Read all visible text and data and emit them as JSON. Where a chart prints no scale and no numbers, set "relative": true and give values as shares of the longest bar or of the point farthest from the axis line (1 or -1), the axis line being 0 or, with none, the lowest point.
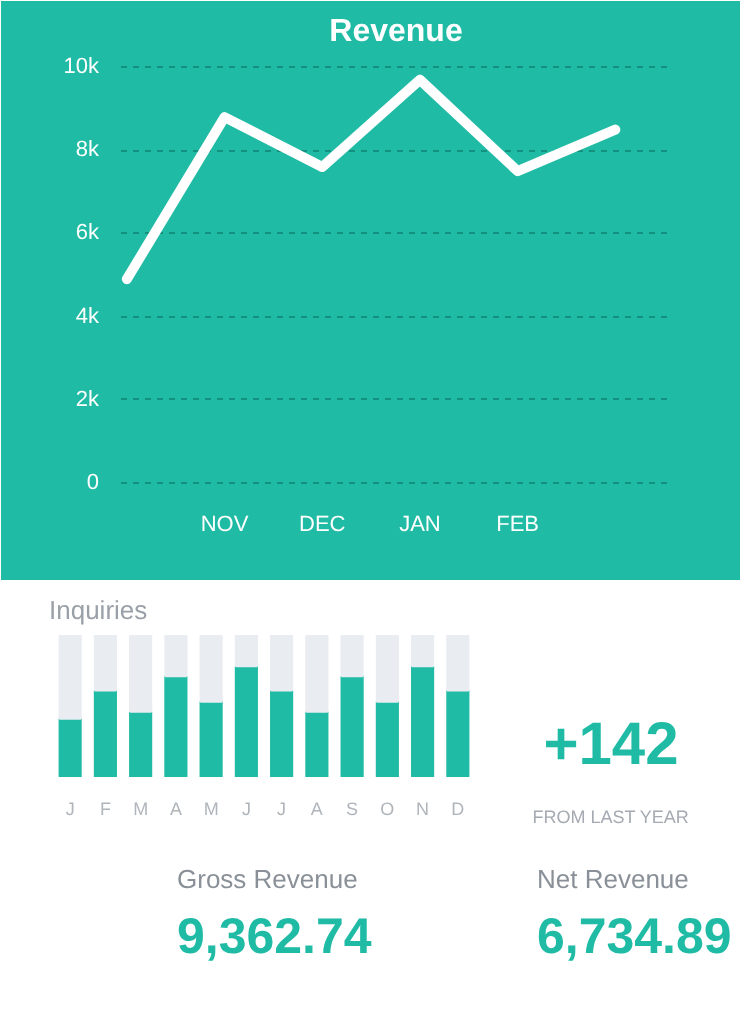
{
  "chart_data": [
    {
      "type": "line",
      "title": "Revenue",
      "categories": [
        null,
        "NOV",
        "DEC",
        "JAN",
        "FEB",
        null
      ],
      "series": [
        {
          "color": "#ffffff",
          "values": [
            4900,
            8800,
            7600,
            9700,
            7500,
            8500
          ]
        }
      ],
      "ylim": [
        -200,
        10200
      ],
      "yticks": [
        0,
        {
          "value": 2000,
          "label": "2k"
        },
        {
          "value": 4000,
          "label": "4k"
        },
        {
          "value": 6000,
          "label": "6k"
        },
        {
          "value": 8000,
          "label": "8k"
        },
        {
          "value": 10000,
          "label": "10k"
        }
      ],
      "grid": "y",
      "marker": "none",
      "line_style": "solid"
    },
    {
      "type": "bar",
      "title": "Inquiries",
      "categories": [
        "J",
        "F",
        "M",
        "A",
        "M",
        "J",
        "J",
        "A",
        "S",
        "O",
        "N",
        "D"
      ],
      "stacked": true,
      "relative": true,
      "grid": false,
      "series": [
        {
          "color": "#20bba5",
          "values": [
            0.41,
            0.61,
            0.46,
            0.71,
            0.53,
            0.78,
            0.61,
            0.46,
            0.71,
            0.53,
            0.78,
            0.61
          ]
        },
        {
          "color": "#e9ecf0",
          "values": [
            0.59,
            0.39,
            0.54,
            0.29,
            0.47,
            0.22,
            0.39,
            0.54,
            0.29,
            0.47,
            0.22,
            0.39
          ]
        }
      ]
    },
    {
      "type": "other",
      "annotations": [
        "+142",
        "FROM LAST YEAR"
      ]
    },
    {
      "type": "other",
      "annotations": [
        "Gross Revenue",
        "9,362.74",
        "Net Revenue",
        "6,734.89"
      ]
    }
  ]
}
